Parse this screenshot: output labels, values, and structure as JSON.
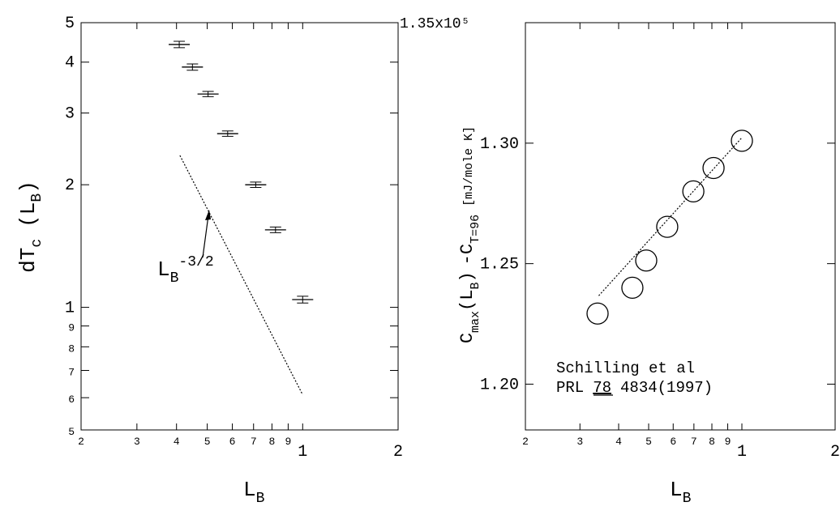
{
  "chart_data": [
    {
      "type": "scatter",
      "xlog": true,
      "ylog": true,
      "xlim": [
        0.2,
        2
      ],
      "ylim": [
        0.5,
        5
      ],
      "xticks": [
        {
          "value": 0.2,
          "label": "2"
        },
        {
          "value": 0.3,
          "label": "3"
        },
        {
          "value": 0.4,
          "label": "4"
        },
        {
          "value": 0.5,
          "label": "5"
        },
        {
          "value": 0.6,
          "label": "6"
        },
        {
          "value": 0.7,
          "label": "7"
        },
        {
          "value": 0.8,
          "label": "8"
        },
        {
          "value": 0.9,
          "label": "9"
        },
        1,
        2
      ],
      "yticks": [
        {
          "value": 0.5,
          "label": "5"
        },
        {
          "value": 0.6,
          "label": "6"
        },
        {
          "value": 0.7,
          "label": "7"
        },
        {
          "value": 0.8,
          "label": "8"
        },
        {
          "value": 0.9,
          "label": "9"
        },
        1,
        2,
        3,
        4,
        5
      ],
      "xlabel_parts": [
        "L",
        "B"
      ],
      "ylabel_parts": [
        "dT",
        "c",
        "(L",
        "B",
        ")"
      ],
      "annotation_parts": [
        "L",
        "B",
        "-3/2"
      ],
      "series": [
        {
          "marker": "errorbar",
          "color": "#000",
          "x": [
            0.408,
            0.449,
            0.503,
            0.58,
            0.711,
            0.821,
            1.0
          ],
          "values": [
            4.42,
            3.89,
            3.34,
            2.67,
            2.0,
            1.55,
            1.045
          ],
          "errors": [
            0.08,
            0.07,
            0.05,
            0.04,
            0.03,
            0.025,
            0.02
          ]
        },
        {
          "marker": "dotted-line",
          "color": "#000",
          "x": [
            0.41,
            1.0
          ],
          "values": [
            2.36,
            0.61
          ]
        }
      ]
    },
    {
      "type": "scatter",
      "xlog": true,
      "ylog": false,
      "xlim": [
        0.2,
        2
      ],
      "ylim": [
        1.181,
        1.35
      ],
      "xticks": [
        {
          "value": 0.2,
          "label": "2"
        },
        {
          "value": 0.3,
          "label": "3"
        },
        {
          "value": 0.4,
          "label": "4"
        },
        {
          "value": 0.5,
          "label": "5"
        },
        {
          "value": 0.6,
          "label": "6"
        },
        {
          "value": 0.7,
          "label": "7"
        },
        {
          "value": 0.8,
          "label": "8"
        },
        {
          "value": 0.9,
          "label": "9"
        },
        1,
        2
      ],
      "yticks": [
        {
          "value": 1.2,
          "label": "1.20"
        },
        {
          "value": 1.25,
          "label": "1.25"
        },
        {
          "value": 1.3,
          "label": "1.30"
        },
        {
          "value": 1.35,
          "label": "1.35x10⁵"
        }
      ],
      "xlabel_parts": [
        "L",
        "B"
      ],
      "ylabel_parts": [
        "C",
        "max",
        "(L",
        "B",
        ")",
        "-C",
        "T=96",
        "[mJ/mole K]"
      ],
      "annotation_parts": [
        "Schilling et al",
        "PRL",
        "78",
        "4834(1997)"
      ],
      "series": [
        {
          "marker": "circle",
          "color": "#000",
          "x": [
            0.342,
            0.443,
            0.491,
            0.574,
            0.697,
            0.81,
            1.0
          ],
          "values": [
            1.2293,
            1.24,
            1.2513,
            1.2653,
            1.28,
            1.2897,
            1.301
          ]
        },
        {
          "marker": "dotted-line",
          "color": "#000",
          "x": [
            0.345,
            1.0
          ],
          "values": [
            1.2367,
            1.3023
          ]
        }
      ]
    }
  ]
}
